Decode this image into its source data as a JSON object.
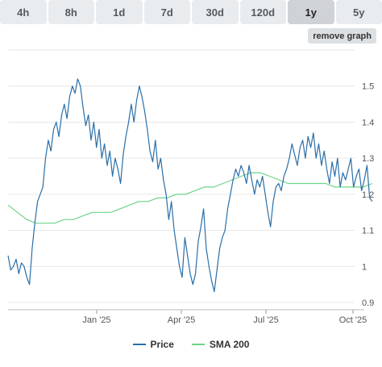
{
  "tabs": [
    {
      "label": "4h",
      "active": false
    },
    {
      "label": "8h",
      "active": false
    },
    {
      "label": "1d",
      "active": false
    },
    {
      "label": "7d",
      "active": false
    },
    {
      "label": "30d",
      "active": false
    },
    {
      "label": "120d",
      "active": false
    },
    {
      "label": "1y",
      "active": true
    },
    {
      "label": "5y",
      "active": false
    }
  ],
  "remove_graph_label": "remove graph",
  "colors": {
    "price": "#2a6fa8",
    "sma": "#6fd38a",
    "grid": "#e6e6e6"
  },
  "chart_data": {
    "type": "line",
    "title": "",
    "xlabel": "",
    "ylabel": "",
    "x_ticks": [
      "Jan '25",
      "Apr '25",
      "Jul '25",
      "Oct '25"
    ],
    "y_ticks": [
      0.9,
      1,
      1.1,
      1.2,
      1.3,
      1.4,
      1.5
    ],
    "ylim": [
      0.88,
      1.6
    ],
    "grid": true,
    "legend_position": "bottom",
    "series": [
      {
        "name": "Price",
        "values": [
          1.03,
          0.99,
          1.0,
          1.02,
          0.98,
          1.01,
          1.0,
          0.97,
          0.95,
          1.05,
          1.12,
          1.18,
          1.2,
          1.22,
          1.3,
          1.35,
          1.32,
          1.38,
          1.4,
          1.36,
          1.42,
          1.45,
          1.41,
          1.47,
          1.5,
          1.48,
          1.52,
          1.5,
          1.44,
          1.39,
          1.42,
          1.35,
          1.4,
          1.33,
          1.38,
          1.3,
          1.34,
          1.28,
          1.32,
          1.25,
          1.3,
          1.27,
          1.23,
          1.31,
          1.36,
          1.4,
          1.45,
          1.4,
          1.46,
          1.5,
          1.47,
          1.43,
          1.38,
          1.32,
          1.29,
          1.35,
          1.27,
          1.3,
          1.24,
          1.2,
          1.13,
          1.18,
          1.1,
          1.05,
          1.0,
          0.97,
          1.08,
          1.03,
          0.98,
          0.95,
          0.98,
          1.07,
          1.11,
          1.16,
          1.05,
          1.0,
          0.96,
          0.93,
          0.99,
          1.05,
          1.08,
          1.1,
          1.16,
          1.2,
          1.24,
          1.27,
          1.25,
          1.28,
          1.26,
          1.23,
          1.28,
          1.24,
          1.2,
          1.24,
          1.22,
          1.25,
          1.2,
          1.15,
          1.11,
          1.18,
          1.22,
          1.23,
          1.21,
          1.25,
          1.27,
          1.3,
          1.34,
          1.31,
          1.28,
          1.33,
          1.35,
          1.3,
          1.36,
          1.33,
          1.37,
          1.3,
          1.34,
          1.28,
          1.32,
          1.27,
          1.23,
          1.29,
          1.25,
          1.3,
          1.22,
          1.26,
          1.24,
          1.27,
          1.3,
          1.22,
          1.25,
          1.27,
          1.21,
          1.24,
          1.28,
          1.19,
          1.18
        ]
      },
      {
        "name": "SMA 200",
        "values": [
          1.17,
          1.15,
          1.13,
          1.12,
          1.12,
          1.12,
          1.13,
          1.13,
          1.14,
          1.15,
          1.15,
          1.15,
          1.16,
          1.17,
          1.18,
          1.18,
          1.19,
          1.19,
          1.2,
          1.2,
          1.21,
          1.22,
          1.22,
          1.23,
          1.24,
          1.25,
          1.26,
          1.26,
          1.25,
          1.24,
          1.23,
          1.23,
          1.23,
          1.23,
          1.23,
          1.22,
          1.22,
          1.22,
          1.22,
          1.23
        ]
      }
    ]
  }
}
